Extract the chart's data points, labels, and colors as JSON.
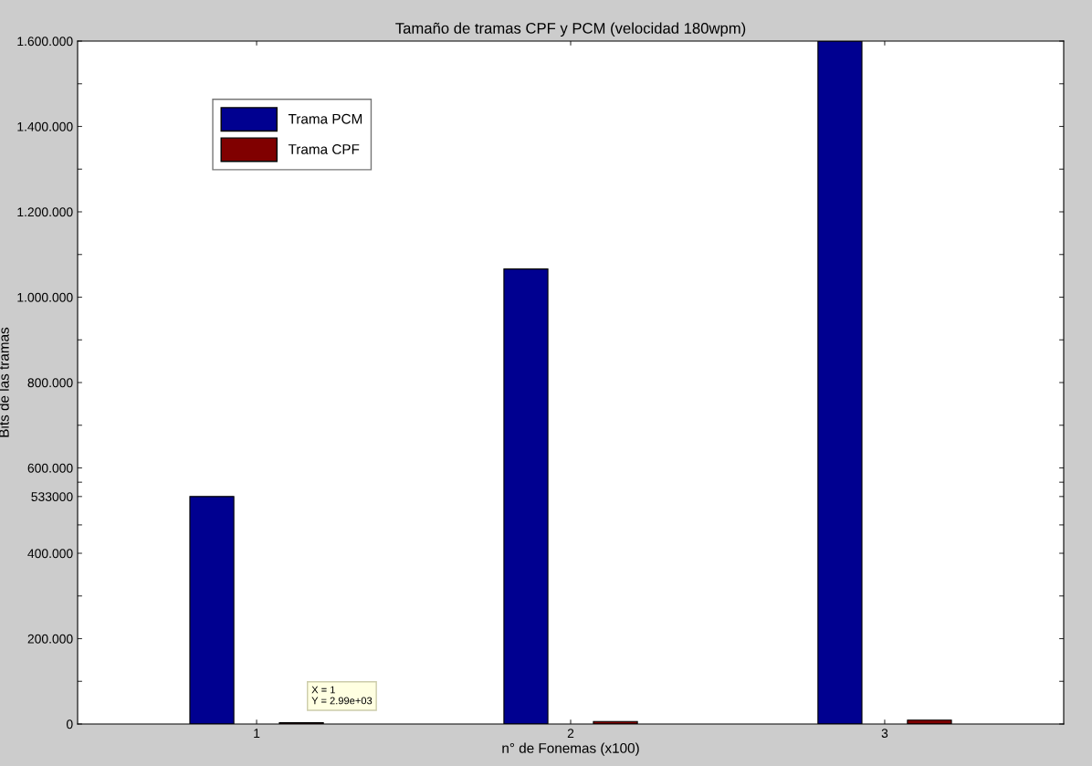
{
  "chart_data": {
    "type": "bar",
    "title": "Tamaño de tramas CPF y PCM (velocidad 180wpm)",
    "xlabel": "n° de Fonemas (x100)",
    "ylabel": "Bits de las tramas",
    "categories": [
      "1",
      "2",
      "3"
    ],
    "series": [
      {
        "name": "Trama PCM",
        "color": "#000090",
        "values": [
          533000,
          1066000,
          1600000
        ]
      },
      {
        "name": "Trama CPF",
        "color": "#800000",
        "values": [
          2990,
          6000,
          9000
        ]
      }
    ],
    "ylim": [
      0,
      1600000
    ],
    "yticks": [
      {
        "value": 0,
        "label": "0"
      },
      {
        "value": 100000,
        "label": null
      },
      {
        "value": 200000,
        "label": "200.000"
      },
      {
        "value": 300000,
        "label": null
      },
      {
        "value": 400000,
        "label": "400.000"
      },
      {
        "value": 466500,
        "label": null
      },
      {
        "value": 533000,
        "label": "533000"
      },
      {
        "value": 566500,
        "label": null
      },
      {
        "value": 600000,
        "label": "600.000"
      },
      {
        "value": 700000,
        "label": null
      },
      {
        "value": 800000,
        "label": "800.000"
      },
      {
        "value": 900000,
        "label": null
      },
      {
        "value": 1000000,
        "label": "1.000.000"
      },
      {
        "value": 1100000,
        "label": null
      },
      {
        "value": 1200000,
        "label": "1.200.000"
      },
      {
        "value": 1300000,
        "label": null
      },
      {
        "value": 1400000,
        "label": "1.400.000"
      },
      {
        "value": 1500000,
        "label": null
      },
      {
        "value": 1600000,
        "label": "1.600.000"
      }
    ],
    "annotations": [
      "X = 1\nY = 2.99e+03"
    ],
    "legend": "top left",
    "grid": false
  }
}
